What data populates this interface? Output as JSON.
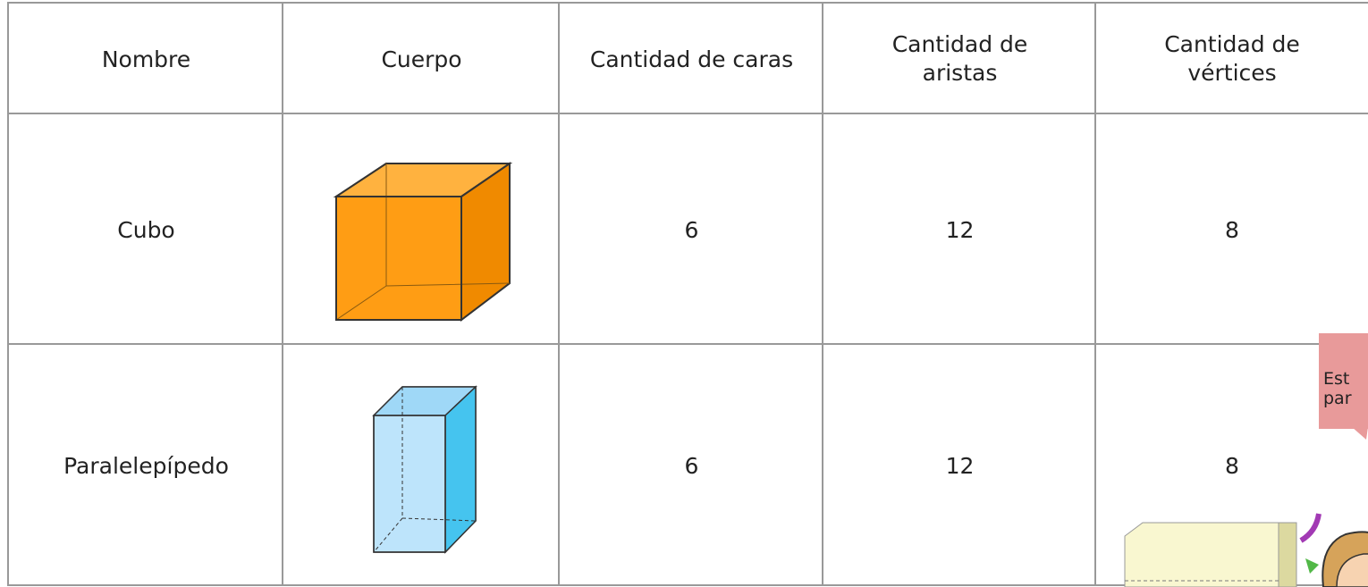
{
  "table": {
    "header": [
      "Nombre",
      "Cuerpo",
      "Cantidad de caras",
      "Cantidad de aristas",
      "Cantidad de vértices"
    ],
    "rows": [
      [
        "Cubo",
        null,
        6,
        12,
        8
      ],
      [
        "Paralelepípedo",
        null,
        6,
        12,
        8
      ]
    ]
  },
  "bubble": {
    "lines": [
      "Est",
      "par"
    ]
  }
}
